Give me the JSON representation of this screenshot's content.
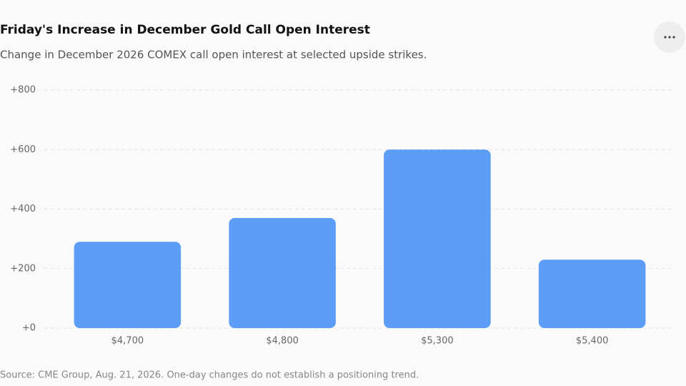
{
  "chart_data": {
    "type": "bar",
    "title": "Friday's Increase in December Gold Call Open Interest",
    "subtitle": "Change in December 2026 COMEX call open interest at selected upside strikes.",
    "source": "Source: CME Group, Aug. 21, 2026. One-day changes do not establish a positioning trend.",
    "categories": [
      "$4,700",
      "$4,800",
      "$5,300",
      "$5,400"
    ],
    "values": [
      290,
      370,
      600,
      230
    ],
    "color": "#5399f7",
    "ylim": [
      0,
      800
    ],
    "yticks": [
      {
        "value": 0,
        "label": "+0"
      },
      {
        "value": 200,
        "label": "+200"
      },
      {
        "value": 400,
        "label": "+400"
      },
      {
        "value": 600,
        "label": "+600"
      },
      {
        "value": 800,
        "label": "+800"
      }
    ],
    "grid": true
  }
}
